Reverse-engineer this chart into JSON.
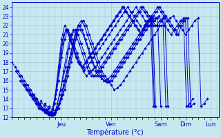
{
  "bg_color": "#c8e8f0",
  "grid_color": "#a0c8d8",
  "line_color": "#0000cc",
  "ylim": [
    12,
    24.5
  ],
  "yticks": [
    12,
    13,
    14,
    15,
    16,
    17,
    18,
    19,
    20,
    21,
    22,
    23,
    24
  ],
  "xlabel": "Température (°c)",
  "day_labels": [
    "",
    "Jeu",
    "Ven",
    "Sam",
    "Dim",
    "Lun"
  ],
  "day_ticks": [
    0,
    48,
    96,
    144,
    168,
    192
  ],
  "xlim": [
    0,
    200
  ],
  "series": [
    {
      "x_start": 0,
      "y": [
        18.0,
        17.5,
        17.0,
        16.5,
        16.0,
        15.5,
        15.0,
        14.5,
        14.0,
        13.5,
        13.0,
        12.8,
        12.5,
        12.3,
        12.5,
        13.0,
        14.0,
        15.0,
        16.5,
        18.0,
        19.5,
        21.0,
        22.0,
        22.5,
        22.0,
        21.0,
        20.0,
        19.0,
        18.0,
        17.0,
        16.5,
        16.0,
        15.5,
        15.0,
        15.2,
        15.5,
        16.0,
        16.5,
        17.0,
        17.5,
        18.0,
        18.5,
        19.0,
        19.5,
        20.0,
        20.5,
        21.0,
        21.5,
        22.0,
        22.0,
        22.5,
        22.8,
        23.0,
        22.5,
        22.0,
        21.5,
        21.0,
        21.5,
        22.0,
        22.5,
        22.8,
        13.2,
        13.5,
        14.0
      ]
    },
    {
      "x_start": 4,
      "y": [
        17.0,
        16.5,
        16.0,
        15.5,
        15.0,
        14.5,
        14.0,
        13.5,
        13.0,
        12.8,
        12.5,
        12.3,
        12.3,
        12.8,
        13.5,
        14.5,
        16.0,
        17.5,
        19.0,
        20.5,
        22.0,
        22.5,
        22.0,
        21.0,
        20.0,
        19.0,
        18.0,
        17.0,
        16.5,
        16.0,
        15.8,
        16.0,
        16.5,
        17.0,
        17.5,
        18.0,
        18.5,
        19.0,
        19.5,
        20.0,
        20.5,
        21.0,
        21.5,
        22.0,
        22.5,
        22.8,
        23.0,
        22.5,
        22.0,
        21.5,
        21.0,
        21.5,
        22.0,
        22.5,
        22.8,
        13.2,
        13.5,
        14.0
      ]
    },
    {
      "x_start": 8,
      "y": [
        16.0,
        15.5,
        15.0,
        14.5,
        14.0,
        13.5,
        13.0,
        12.8,
        12.5,
        12.3,
        12.2,
        12.5,
        13.0,
        14.0,
        15.5,
        17.0,
        18.5,
        20.0,
        21.5,
        22.0,
        21.5,
        20.5,
        19.5,
        18.5,
        17.5,
        17.0,
        16.5,
        16.0,
        15.8,
        16.0,
        16.5,
        17.0,
        17.5,
        18.0,
        18.5,
        19.0,
        19.5,
        20.0,
        20.5,
        21.0,
        21.5,
        22.0,
        22.5,
        23.0,
        23.5,
        24.0,
        23.5,
        23.0,
        22.5,
        22.0,
        21.5,
        21.0,
        22.0,
        22.5,
        22.8,
        13.2,
        13.5
      ]
    },
    {
      "x_start": 12,
      "y": [
        15.5,
        15.0,
        14.5,
        14.0,
        13.5,
        13.0,
        12.8,
        12.5,
        12.3,
        12.2,
        12.5,
        13.0,
        14.5,
        16.0,
        17.5,
        19.0,
        20.5,
        21.5,
        21.5,
        21.0,
        20.0,
        19.0,
        18.0,
        17.0,
        16.5,
        16.2,
        16.0,
        16.2,
        16.5,
        17.0,
        17.5,
        18.0,
        18.5,
        19.0,
        19.5,
        20.0,
        20.5,
        21.0,
        21.5,
        22.0,
        22.5,
        23.0,
        23.5,
        24.0,
        23.5,
        23.0,
        22.5,
        22.0,
        21.5,
        21.0,
        22.0,
        22.5,
        22.8,
        13.2
      ]
    },
    {
      "x_start": 16,
      "y": [
        15.0,
        14.5,
        14.0,
        13.5,
        13.0,
        12.8,
        12.5,
        12.3,
        12.3,
        13.0,
        14.5,
        16.0,
        17.5,
        19.5,
        21.0,
        21.5,
        21.0,
        20.0,
        19.0,
        18.0,
        17.0,
        16.5,
        16.5,
        17.0,
        17.5,
        18.0,
        18.5,
        19.0,
        19.5,
        20.0,
        20.5,
        21.0,
        21.5,
        22.0,
        22.5,
        23.0,
        23.5,
        24.0,
        23.5,
        23.0,
        22.5,
        22.0,
        22.0,
        22.5,
        22.8,
        13.2
      ]
    },
    {
      "x_start": 20,
      "y": [
        14.5,
        14.0,
        13.5,
        13.0,
        12.8,
        12.5,
        12.3,
        12.3,
        13.5,
        15.0,
        17.0,
        19.0,
        20.5,
        21.5,
        21.0,
        20.0,
        19.0,
        18.0,
        17.0,
        16.5,
        16.5,
        17.0,
        17.5,
        18.0,
        18.5,
        19.0,
        19.5,
        20.0,
        20.5,
        21.0,
        21.5,
        22.0,
        22.5,
        23.0,
        23.5,
        24.0,
        23.5,
        23.0,
        22.5,
        22.0,
        22.0,
        22.5,
        22.8,
        13.2
      ]
    },
    {
      "x_start": 24,
      "y": [
        14.0,
        13.5,
        13.0,
        12.8,
        12.5,
        12.5,
        14.0,
        16.0,
        18.5,
        20.5,
        21.5,
        21.0,
        20.0,
        19.0,
        18.0,
        17.0,
        16.5,
        16.8,
        17.2,
        17.5,
        18.0,
        18.5,
        19.0,
        19.5,
        20.0,
        20.5,
        21.0,
        21.5,
        22.0,
        22.5,
        23.0,
        23.5,
        24.0,
        23.5,
        23.0,
        22.5,
        22.0,
        22.0,
        22.5,
        22.8,
        13.2
      ]
    },
    {
      "x_start": 28,
      "y": [
        13.8,
        13.3,
        12.8,
        12.5,
        12.8,
        15.0,
        17.5,
        20.0,
        21.5,
        21.0,
        20.0,
        19.0,
        18.0,
        17.5,
        17.2,
        17.5,
        18.0,
        18.5,
        19.0,
        19.5,
        20.0,
        20.5,
        21.0,
        21.5,
        22.0,
        22.5,
        23.0,
        23.5,
        24.0,
        23.5,
        23.0,
        22.5,
        22.0,
        21.5,
        22.0,
        22.5,
        22.8,
        13.2
      ]
    },
    {
      "x_start": 32,
      "y": [
        13.5,
        13.0,
        12.5,
        13.5,
        16.0,
        19.0,
        21.0,
        21.5,
        20.5,
        19.5,
        18.5,
        17.8,
        17.5,
        18.0,
        18.5,
        19.0,
        19.5,
        20.0,
        20.5,
        21.0,
        21.5,
        22.0,
        22.5,
        23.0,
        23.5,
        24.0,
        23.5,
        23.0,
        22.5,
        22.0,
        21.5,
        21.0,
        22.0,
        22.5,
        22.8,
        13.2
      ]
    },
    {
      "x_start": 36,
      "y": [
        13.2,
        12.8,
        14.5,
        17.5,
        20.5,
        22.0,
        21.5,
        20.5,
        19.5,
        18.5,
        17.8,
        17.5,
        18.0,
        18.5,
        19.0,
        19.5,
        20.0,
        20.5,
        21.0,
        21.5,
        22.0,
        22.5,
        23.0,
        23.5,
        24.0,
        23.5,
        23.0,
        22.5,
        22.0,
        21.5,
        21.0,
        22.0,
        22.5,
        22.8,
        13.2
      ]
    }
  ]
}
